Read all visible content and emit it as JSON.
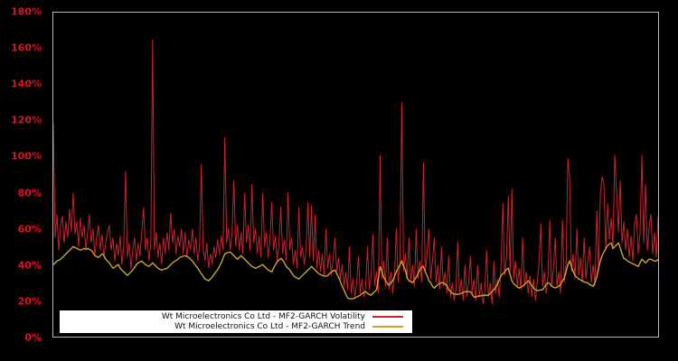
{
  "chart_data": {
    "type": "line",
    "title": "",
    "xlabel": "",
    "ylabel": "",
    "unit": "%",
    "ylim": [
      0,
      180
    ],
    "y_tick_labels": [
      "180%",
      "160%",
      "140%",
      "120%",
      "100%",
      "80%",
      "60%",
      "40%",
      "20%",
      "0%"
    ],
    "x_tick_labels": [],
    "grid": false,
    "legend_position": "lower-left",
    "colors": {
      "background": "#000000",
      "axis_border": "#b9b9b9",
      "tick_label": "#dd1122",
      "legend_background": "#ffffff",
      "legend_text": "#111111"
    },
    "series": [
      {
        "name": "Wt Microelectronics Co Ltd - MF2-GARCH Volatility",
        "color": "#cc2128",
        "stroke_width": 1,
        "values": [
          118,
          55,
          68,
          48,
          62,
          67,
          52,
          64,
          55,
          71,
          58,
          80,
          57,
          64,
          50,
          66,
          55,
          62,
          48,
          58,
          68,
          52,
          60,
          45,
          55,
          62,
          48,
          57,
          44,
          52,
          58,
          62,
          48,
          55,
          42,
          52,
          45,
          56,
          40,
          50,
          92,
          44,
          52,
          38,
          48,
          55,
          42,
          52,
          45,
          58,
          72,
          48,
          55,
          42,
          52,
          165,
          48,
          58,
          44,
          52,
          40,
          55,
          46,
          58,
          48,
          69,
          52,
          60,
          46,
          56,
          50,
          60,
          46,
          58,
          44,
          54,
          48,
          60,
          46,
          55,
          42,
          50,
          96,
          48,
          42,
          52,
          38,
          46,
          40,
          50,
          44,
          54,
          46,
          56,
          48,
          111,
          52,
          60,
          48,
          58,
          87,
          50,
          62,
          48,
          58,
          46,
          80,
          52,
          62,
          48,
          85,
          52,
          60,
          46,
          56,
          44,
          80,
          50,
          58,
          44,
          54,
          75,
          48,
          56,
          42,
          52,
          72,
          46,
          54,
          42,
          80,
          48,
          55,
          40,
          48,
          38,
          72,
          44,
          50,
          40,
          48,
          75,
          44,
          73,
          42,
          68,
          38,
          48,
          36,
          46,
          34,
          60,
          38,
          46,
          34,
          44,
          55,
          36,
          44,
          32,
          40,
          28,
          36,
          26,
          50,
          24,
          32,
          22,
          30,
          45,
          24,
          32,
          22,
          28,
          50,
          26,
          34,
          57,
          28,
          36,
          24,
          101,
          32,
          42,
          28,
          55,
          26,
          36,
          24,
          34,
          60,
          30,
          40,
          130,
          36,
          46,
          32,
          55,
          30,
          40,
          28,
          60,
          32,
          42,
          30,
          97,
          36,
          46,
          60,
          32,
          42,
          55,
          30,
          40,
          26,
          50,
          28,
          36,
          24,
          45,
          22,
          30,
          20,
          26,
          53,
          24,
          32,
          20,
          40,
          22,
          30,
          45,
          24,
          32,
          20,
          40,
          22,
          30,
          18,
          26,
          48,
          22,
          30,
          18,
          42,
          24,
          32,
          22,
          40,
          74,
          34,
          44,
          78,
          36,
          82,
          32,
          42,
          28,
          38,
          26,
          55,
          28,
          36,
          24,
          34,
          22,
          32,
          20,
          30,
          40,
          63,
          28,
          36,
          24,
          34,
          65,
          28,
          38,
          55,
          28,
          36,
          24,
          65,
          30,
          40,
          99,
          88,
          36,
          46,
          32,
          60,
          34,
          44,
          30,
          55,
          32,
          42,
          50,
          30,
          40,
          28,
          70,
          36,
          79,
          89,
          85,
          48,
          74,
          54,
          66,
          50,
          101,
          80,
          58,
          87,
          52,
          64,
          48,
          60,
          44,
          56,
          42,
          63,
          68,
          46,
          58,
          101,
          52,
          85,
          48,
          60,
          68,
          46,
          58,
          44,
          67
        ]
      },
      {
        "name": "Wt Microelectronics Co Ltd - MF2-GARCH Trend",
        "color": "#cda42e",
        "stroke_width": 1.4,
        "values": [
          40,
          41,
          42,
          42.5,
          43,
          44,
          45,
          46,
          47,
          48,
          49,
          50,
          49.5,
          49,
          48.5,
          48,
          48.5,
          49,
          48.5,
          49,
          48.5,
          48,
          46.5,
          45,
          44.5,
          44,
          45,
          46,
          45,
          43,
          42,
          41,
          39.5,
          38,
          38.5,
          39.5,
          40,
          38,
          37,
          36,
          35,
          34,
          35,
          36,
          37,
          38.5,
          40,
          41,
          41.5,
          42,
          41,
          40,
          39.5,
          39,
          40,
          41,
          40,
          39,
          38,
          37.5,
          37,
          37.3,
          37.7,
          38,
          39,
          40,
          41,
          41.7,
          42.3,
          43,
          44,
          44.3,
          44.7,
          45,
          44.5,
          44,
          43,
          42,
          40.7,
          39.3,
          38,
          36.5,
          35,
          33.5,
          32,
          31.5,
          31,
          32,
          33,
          34.5,
          36,
          37,
          39,
          41,
          43.5,
          46,
          46.5,
          46.8,
          47,
          46,
          45,
          44,
          43,
          44,
          45,
          44,
          43,
          42,
          41,
          40,
          39,
          38.5,
          38,
          38.5,
          39,
          39.5,
          40,
          39,
          38,
          37,
          36.5,
          36,
          38,
          40,
          41.5,
          42.5,
          43.5,
          42.5,
          41,
          39,
          38,
          37,
          35.5,
          34,
          33,
          32.5,
          32,
          33,
          34,
          35,
          36,
          37,
          38,
          39,
          38,
          37,
          36,
          35,
          34.5,
          34,
          33.7,
          33.5,
          34,
          35,
          36,
          36.5,
          37,
          35,
          33,
          30.5,
          28,
          26,
          23.5,
          21.5,
          21,
          21,
          21,
          21.5,
          22,
          22.5,
          23,
          24,
          24.5,
          25,
          24,
          23.5,
          23,
          24,
          25,
          26,
          32,
          39,
          36,
          33,
          31,
          29.5,
          28.5,
          30,
          31,
          33.5,
          36,
          38,
          40,
          42,
          39,
          37,
          32.5,
          31,
          30.5,
          30,
          31.5,
          33,
          35,
          37,
          38.5,
          39,
          36,
          34,
          31,
          30,
          28,
          27,
          28,
          29,
          29.5,
          30,
          30,
          29,
          28.5,
          26,
          25,
          24,
          23.7,
          23.5,
          23.5,
          23.7,
          24,
          24.5,
          25,
          25,
          25,
          25,
          23.5,
          22,
          22,
          22.5,
          22.5,
          22.7,
          23,
          23,
          23,
          23,
          24,
          25,
          26,
          27.5,
          29,
          31.5,
          34,
          35,
          36,
          37.3,
          38,
          34.5,
          31,
          29.5,
          28.5,
          27.7,
          27,
          27.5,
          28,
          29,
          30,
          31,
          30,
          28.5,
          27,
          26.2,
          25.5,
          25.7,
          26,
          26,
          27.5,
          29,
          30,
          29.5,
          28,
          27.5,
          27,
          27.5,
          28,
          29,
          31,
          32.5,
          36,
          40,
          42,
          39,
          36,
          34,
          33,
          32,
          31.5,
          31,
          30.5,
          30,
          30,
          29,
          28.5,
          28,
          30,
          33,
          38,
          42,
          45,
          47,
          49,
          50.5,
          51.5,
          52,
          49,
          50,
          51,
          52,
          49.5,
          46,
          43.5,
          43,
          42,
          41.5,
          41,
          40.5,
          40,
          39.5,
          39,
          41,
          43,
          42,
          41,
          42,
          43,
          43,
          42.5,
          42,
          42,
          43
        ]
      }
    ]
  },
  "legend": {
    "items": [
      {
        "label": "Wt Microelectronics Co Ltd - MF2-GARCH Volatility"
      },
      {
        "label": "Wt Microelectronics Co Ltd - MF2-GARCH Trend"
      }
    ]
  }
}
